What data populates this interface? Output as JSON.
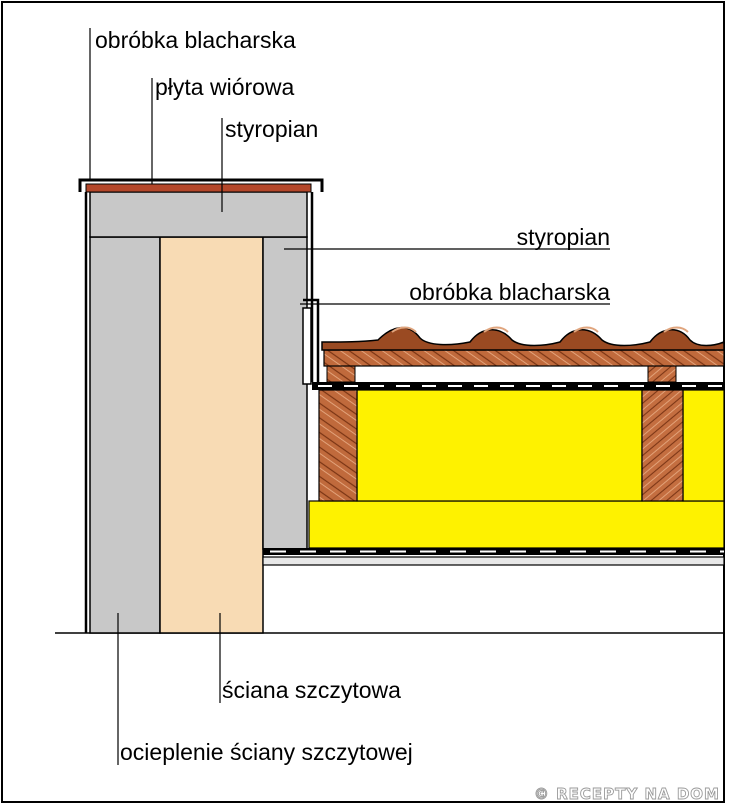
{
  "labels": {
    "flashing_top": "obróbka blacharska",
    "chipboard": "płyta wiórowa",
    "styrofoam_top": "styropian",
    "styrofoam_side": "styropian",
    "flashing_side": "obróbka blacharska",
    "gable_wall": "ściana szczytowa",
    "gable_wall_insulation": "ocieplenie ściany szczytowej"
  },
  "watermark": "© RECEPTY NA DOM",
  "colors": {
    "insulation_grey": "#c8c8c8",
    "wall_fill": "#f8dbb4",
    "mineral_wool": "#fef200",
    "timber": "#c06a3c",
    "roof_tile": "#9a4a22",
    "chipboard": "#b4472a"
  }
}
